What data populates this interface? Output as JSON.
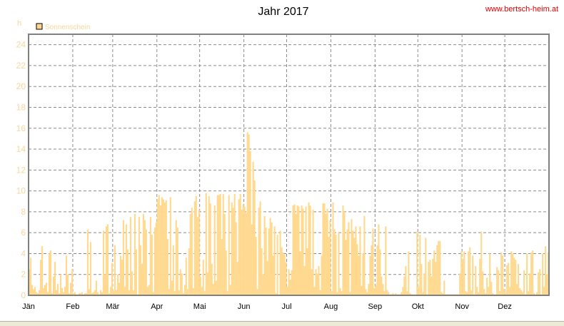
{
  "header": {
    "title": "Jahr 2017",
    "site": "www.bertsch-heim.at"
  },
  "colors": {
    "bar": "#ffd98f",
    "frame": "#808080",
    "grid": "#8a8a8a",
    "site_link": "#e00000",
    "axis_text": "#f5d79a"
  },
  "chart_data": {
    "type": "bar",
    "title": "Jahr 2017",
    "ylabel": "h",
    "xlabel": "",
    "ylim": [
      0,
      25
    ],
    "yticks": [
      "0",
      "2",
      "4",
      "6",
      "8",
      "10",
      "12",
      "14",
      "16",
      "18",
      "20",
      "22",
      "24"
    ],
    "xticks": [
      "Jän",
      "Feb",
      "Mär",
      "Apr",
      "Mai",
      "Jun",
      "Jul",
      "Aug",
      "Sep",
      "Okt",
      "Nov",
      "Dez"
    ],
    "grid": true,
    "legend_position": "top-left",
    "series": [
      {
        "name": "Sonnenschein",
        "values": [
          2.5,
          3.6,
          1.0,
          0.6,
          0.8,
          0.3,
          0.2,
          0.5,
          3.4,
          4.7,
          0.7,
          1.0,
          1.2,
          0.3,
          4.0,
          4.3,
          0.2,
          1.8,
          3.2,
          0.5,
          1.1,
          0.2,
          2.0,
          0.7,
          0.3,
          0.8,
          3.8,
          2.0,
          0.2,
          1.2,
          2.5,
          0.2,
          0.3,
          0.1,
          0.1,
          0.2,
          0.2,
          0.3,
          0.1,
          0.2,
          0.2,
          6.3,
          0.6,
          5.1,
          0.2,
          0.3,
          0.5,
          1.4,
          0.3,
          0.1,
          0.5,
          0.3,
          6.2,
          2.0,
          6.6,
          6.8,
          0.2,
          0.8,
          3.1,
          0.4,
          4.8,
          0.5,
          2.0,
          1.2,
          3.8,
          3.4,
          7.2,
          0.8,
          6.8,
          4.4,
          0.5,
          7.5,
          2.3,
          0.5,
          7.8,
          4.4,
          0.1,
          7.5,
          4.8,
          3.0,
          7.8,
          7.2,
          6.3,
          0.8,
          1.0,
          7.5,
          5.8,
          0.3,
          6.5,
          7.0,
          9.2,
          9.6,
          8.6,
          9.4,
          9.2,
          8.9,
          9.1,
          5.4,
          0.6,
          9.4,
          1.4,
          4.8,
          0.4,
          7.2,
          6.5,
          0.5,
          2.5,
          2.1,
          0.2,
          1.0,
          3.6,
          0.6,
          4.5,
          7.8,
          8.4,
          0.7,
          9.0,
          9.5,
          7.5,
          8.2,
          1.8,
          0.8,
          3.4,
          0.4,
          9.8,
          2.2,
          9.5,
          8.8,
          3.0,
          1.1,
          8.6,
          1.4,
          9.6,
          9.6,
          9.7,
          5.4,
          9.7,
          7.8,
          4.3,
          0.4,
          9.6,
          1.0,
          8.9,
          8.4,
          9.7,
          7.0,
          3.2,
          9.2,
          9.7,
          8.2,
          8.7,
          8.5,
          7.9,
          15.6,
          15.4,
          13.8,
          6.8,
          12.8,
          11.0,
          5.6,
          0.6,
          8.4,
          9.0,
          4.5,
          2.0,
          7.6,
          6.5,
          3.3,
          6.4,
          7.4,
          7.0,
          3.8,
          6.6,
          0.2,
          5.8,
          0.1,
          6.2,
          4.6,
          4.1,
          3.9,
          3.2,
          0.8,
          2.5,
          1.5,
          2.4,
          8.6,
          8.7,
          7.8,
          8.6,
          8.5,
          4.2,
          8.6,
          8.3,
          2.8,
          8.5,
          4.5,
          8.9,
          8.6,
          2.5,
          8.2,
          0.8,
          2.5,
          2.1,
          2.8,
          0.5,
          3.8,
          8.8,
          8.8,
          7.8,
          8.3,
          5.6,
          7.2,
          0.4,
          8.9,
          6.3,
          5.8,
          0.3,
          6.0,
          0.7,
          0.4,
          8.6,
          8.0,
          5.3,
          6.3,
          7.0,
          0.3,
          7.3,
          6.2,
          5.5,
          6.6,
          4.9,
          3.8,
          6.6,
          0.9,
          4.0,
          7.6,
          0.6,
          0.3,
          1.1,
          3.8,
          4.8,
          6.4,
          0.7,
          1.0,
          4.8,
          6.8,
          4.4,
          1.8,
          1.1,
          0.4,
          6.6,
          0.5,
          0.3,
          0.1,
          0.1,
          0.2,
          0.1,
          0.2,
          0.1,
          0.1,
          0.1,
          0.3,
          0.8,
          1.8,
          2.8,
          0.4,
          4.2,
          0.2,
          0.1,
          0.1,
          0.1,
          0.1,
          6.1,
          0.8,
          5.8,
          3.0,
          0.3,
          2.1,
          5.5,
          0.1,
          3.2,
          3.4,
          1.8,
          3.5,
          4.3,
          3.2,
          4.8,
          5.2,
          5.2,
          0.3,
          0.2,
          1.4,
          0.1,
          0.1,
          0.1,
          0.1,
          0.1,
          0.1,
          0.1,
          0.1,
          0.1,
          0.1,
          2.1,
          4.2,
          3.5,
          4.2,
          0.4,
          0.3,
          4.2,
          4.6,
          0.5,
          3.8,
          0.1,
          2.8,
          0.8,
          0.3,
          3.5,
          6.1,
          2.3,
          0.6,
          0.2,
          1.7,
          0.8,
          4.0,
          1.3,
          0.2,
          0.1,
          0.1,
          2.7,
          2.4,
          0.4,
          4.1,
          3.8,
          0.6,
          0.3,
          2.9,
          3.1,
          0.8,
          4.2,
          4.0,
          3.6,
          3.4,
          1.1,
          3.0,
          0.7,
          0.5,
          0.3,
          2.4,
          0.1,
          4.0,
          0.4,
          2.1,
          4.1,
          4.3,
          0.2,
          0.1,
          0.3,
          2.2,
          2.5,
          0.1,
          4.0,
          0.8,
          4.7,
          2.0,
          4.1
        ]
      }
    ]
  }
}
